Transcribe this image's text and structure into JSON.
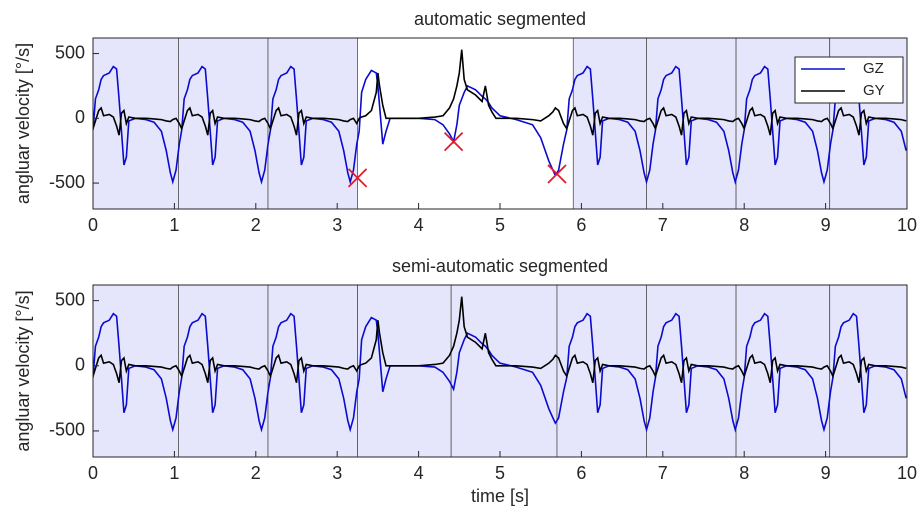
{
  "chart_data": {
    "type": "line",
    "xlabel": "time [s]",
    "ylabel": "angluar velocity [°/s]",
    "xlim": [
      0,
      10
    ],
    "xticks": [
      0,
      1,
      2,
      3,
      4,
      5,
      6,
      7,
      8,
      9,
      10
    ],
    "ylim": [
      -700,
      620
    ],
    "yticks": [
      -500,
      0,
      500
    ],
    "segment_color": "#e5e5fb",
    "x": [
      0,
      0.03,
      0.07,
      0.1,
      0.13,
      0.2,
      0.25,
      0.29,
      0.32,
      0.35,
      0.38,
      0.41,
      0.44,
      0.52,
      0.65,
      0.75,
      0.84,
      0.9,
      0.95,
      0.98,
      1.02,
      1.06,
      1.09,
      1.12,
      1.16,
      1.19,
      1.22,
      1.29,
      1.34,
      1.38,
      1.41,
      1.44,
      1.47,
      1.5,
      1.53,
      1.61,
      1.74,
      1.84,
      1.93,
      1.99,
      2.04,
      2.07,
      2.11,
      2.15,
      2.18,
      2.21,
      2.25,
      2.28,
      2.31,
      2.38,
      2.43,
      2.47,
      2.5,
      2.53,
      2.56,
      2.59,
      2.62,
      2.7,
      2.83,
      2.93,
      3.02,
      3.08,
      3.13,
      3.16,
      3.2,
      3.24,
      3.27,
      3.3,
      3.35,
      3.42,
      3.48,
      3.5,
      3.52,
      3.56,
      3.6,
      3.65,
      3.8,
      4,
      4.2,
      4.3,
      4.38,
      4.43,
      4.47,
      4.5,
      4.53,
      4.56,
      4.6,
      4.7,
      4.78,
      4.82,
      4.86,
      4.9,
      4.95,
      5,
      5.2,
      5.4,
      5.5,
      5.6,
      5.65,
      5.68,
      5.72,
      5.78,
      5.82,
      5.85,
      5.89,
      5.92,
      5.95,
      6.02,
      6.07,
      6.11,
      6.14,
      6.17,
      6.2,
      6.23,
      6.26,
      6.34,
      6.47,
      6.57,
      6.66,
      6.72,
      6.77,
      6.8,
      6.84,
      6.88,
      6.91,
      6.94,
      6.98,
      7.01,
      7.04,
      7.11,
      7.16,
      7.2,
      7.23,
      7.26,
      7.29,
      7.32,
      7.35,
      7.43,
      7.56,
      7.66,
      7.75,
      7.81,
      7.86,
      7.89,
      7.93,
      7.97,
      8,
      8.03,
      8.07,
      8.1,
      8.13,
      8.2,
      8.25,
      8.29,
      8.32,
      8.35,
      8.38,
      8.41,
      8.44,
      8.52,
      8.65,
      8.75,
      8.84,
      8.9,
      8.95,
      8.98,
      9.02,
      9.06,
      9.09,
      9.12,
      9.16,
      9.19,
      9.22,
      9.29,
      9.34,
      9.38,
      9.41,
      9.44,
      9.47,
      9.5,
      9.53,
      9.61,
      9.74,
      9.84,
      9.93,
      9.99
    ],
    "series": [
      {
        "name": "GZ",
        "color": "#0b0bd0",
        "values": [
          -90,
          150,
          220,
          300,
          330,
          350,
          400,
          380,
          150,
          -100,
          -360,
          -300,
          -20,
          0,
          -10,
          -30,
          -100,
          -250,
          -420,
          -490,
          -400,
          -200,
          -90,
          150,
          220,
          300,
          330,
          350,
          400,
          380,
          150,
          -100,
          -360,
          -300,
          -20,
          0,
          -10,
          -30,
          -100,
          -250,
          -420,
          -490,
          -400,
          -200,
          -90,
          150,
          220,
          300,
          330,
          350,
          400,
          380,
          150,
          -100,
          -360,
          -300,
          -20,
          0,
          -10,
          -30,
          -100,
          -250,
          -420,
          -490,
          -400,
          -200,
          -100,
          200,
          300,
          370,
          350,
          250,
          100,
          -200,
          -100,
          0,
          0,
          0,
          -10,
          -50,
          -120,
          -180,
          -50,
          100,
          150,
          200,
          250,
          220,
          170,
          150,
          120,
          80,
          50,
          20,
          -10,
          -50,
          -150,
          -330,
          -400,
          -440,
          -400,
          -200,
          -90,
          150,
          220,
          300,
          330,
          350,
          400,
          380,
          150,
          -100,
          -360,
          -300,
          -20,
          0,
          -10,
          -30,
          -100,
          -250,
          -420,
          -490,
          -400,
          -200,
          -90,
          150,
          220,
          300,
          330,
          350,
          400,
          380,
          150,
          -100,
          -360,
          -300,
          -20,
          0,
          -10,
          -30,
          -100,
          -250,
          -420,
          -490,
          -400,
          -200,
          -90,
          150,
          220,
          300,
          330,
          350,
          400,
          380,
          150,
          -100,
          -360,
          -300,
          -20,
          0,
          -10,
          -30,
          -100,
          -250,
          -420,
          -490,
          -400,
          -200,
          -90,
          150,
          220,
          300,
          330,
          350,
          400,
          380,
          150,
          -100,
          -360,
          -300,
          -20,
          0,
          -10,
          -30,
          -100,
          -250
        ]
      },
      {
        "name": "GY",
        "color": "#000000",
        "values": [
          -80,
          -20,
          60,
          80,
          20,
          30,
          10,
          -60,
          -130,
          40,
          60,
          -40,
          10,
          0,
          0,
          -5,
          -10,
          -20,
          -25,
          -10,
          0,
          -40,
          -80,
          -20,
          60,
          80,
          20,
          30,
          10,
          -60,
          -130,
          40,
          60,
          -40,
          10,
          0,
          0,
          -5,
          -10,
          -20,
          -25,
          -10,
          0,
          -40,
          -80,
          -20,
          60,
          80,
          20,
          30,
          10,
          -60,
          -130,
          40,
          60,
          -40,
          10,
          0,
          0,
          -5,
          -10,
          -20,
          -25,
          -10,
          0,
          -40,
          0,
          10,
          20,
          60,
          200,
          350,
          250,
          100,
          0,
          0,
          0,
          0,
          10,
          20,
          80,
          150,
          250,
          350,
          530,
          300,
          220,
          180,
          130,
          250,
          100,
          50,
          0,
          0,
          0,
          -10,
          -20,
          20,
          50,
          80,
          60,
          -40,
          -80,
          -20,
          60,
          80,
          20,
          30,
          10,
          -60,
          -130,
          40,
          60,
          -40,
          10,
          0,
          0,
          -5,
          -10,
          -20,
          -25,
          -10,
          0,
          -40,
          -80,
          -20,
          60,
          80,
          20,
          30,
          10,
          -60,
          -130,
          40,
          60,
          -40,
          10,
          0,
          0,
          -5,
          -10,
          -20,
          -25,
          -10,
          0,
          -40,
          -80,
          -20,
          60,
          80,
          20,
          30,
          10,
          -60,
          -130,
          40,
          60,
          -40,
          10,
          0,
          0,
          -5,
          -10,
          -20,
          -25,
          -10,
          0,
          -40,
          -80,
          -20,
          60,
          80,
          20,
          30,
          10,
          -60,
          -130,
          40,
          60,
          -40,
          10,
          0,
          0,
          -5,
          -10,
          -20
        ]
      }
    ],
    "panels": [
      {
        "title": "automatic segmented",
        "legend": "northeast",
        "segments": [
          [
            0,
            1.05
          ],
          [
            1.05,
            2.15
          ],
          [
            2.15,
            3.25
          ],
          [
            5.9,
            6.8
          ],
          [
            6.8,
            7.9
          ],
          [
            7.9,
            9.05
          ],
          [
            9.05,
            10
          ]
        ],
        "markers": {
          "x": [
            3.25,
            4.43,
            5.7
          ],
          "y": [
            -460,
            -180,
            -430
          ],
          "color": "#e8192c"
        }
      },
      {
        "title": "semi-automatic segmented",
        "segments": [
          [
            0,
            1.05
          ],
          [
            1.05,
            2.15
          ],
          [
            2.15,
            3.25
          ],
          [
            3.25,
            4.4
          ],
          [
            4.4,
            5.7
          ],
          [
            5.7,
            6.8
          ],
          [
            6.8,
            7.9
          ],
          [
            7.9,
            9.05
          ],
          [
            9.05,
            10
          ]
        ]
      }
    ]
  }
}
